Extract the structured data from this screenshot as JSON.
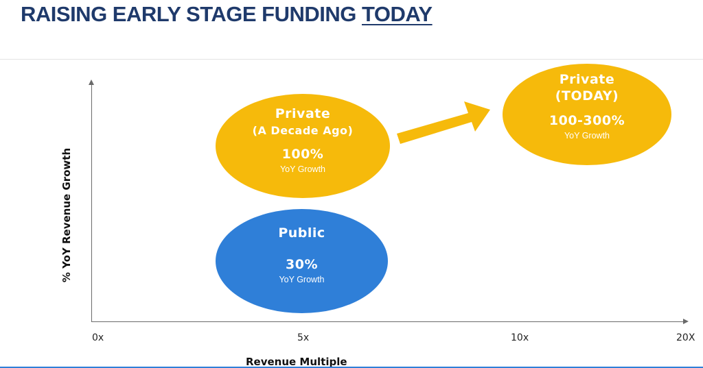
{
  "title": {
    "main": "RAISING EARLY STAGE FUNDING ",
    "emphasis": "TODAY"
  },
  "axes": {
    "y_label": "% YoY Revenue Growth",
    "x_label": "Revenue Multiple",
    "x_ticks": [
      "0x",
      "5x",
      "10x",
      "20X"
    ]
  },
  "groups": {
    "private_decade": {
      "line1": "Private",
      "line2": "(A Decade Ago)",
      "value": "100%",
      "caption": "YoY Growth"
    },
    "private_today": {
      "line1": "Private",
      "line2": "(TODAY)",
      "value": "100-300%",
      "caption": "YoY Growth"
    },
    "public": {
      "line1": "Public",
      "value": "30%",
      "caption": "YoY Growth"
    }
  },
  "colors": {
    "title": "#1f3a6b",
    "private": "#f6ba0b",
    "public": "#2f7fd8",
    "text_on_shape": "#ffffff"
  }
}
